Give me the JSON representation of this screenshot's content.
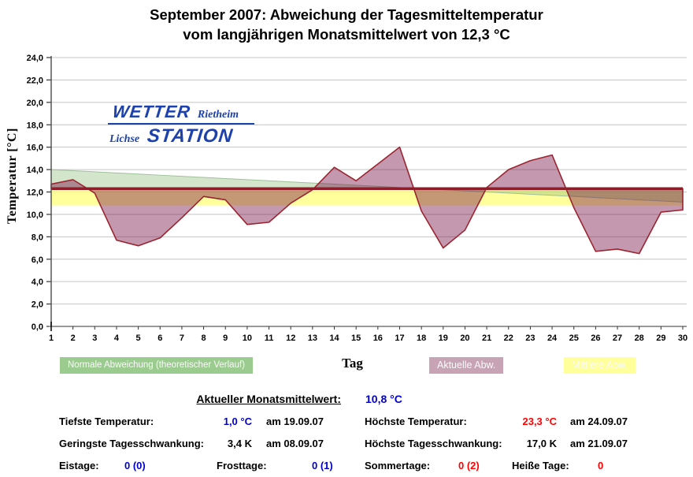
{
  "title": {
    "line1": "September 2007: Abweichung der Tagesmitteltemperatur",
    "line2": "vom langjährigen Monatsmittelwert von 12,3 °C"
  },
  "logo": {
    "top_main": "WETTER",
    "top_sub": "Rietheim",
    "bottom_sub": "Lichse",
    "bottom_main": "STATION"
  },
  "colors": {
    "blue": "#0000d0",
    "red": "#ff0000",
    "black": "#000000",
    "logo_blue": "#1d41ad",
    "reference_red": "#8e1f28"
  },
  "legend": {
    "items": [
      {
        "label": "Normale Abweichung (theoretischer Verlauf)",
        "color": "#9ccb90"
      },
      {
        "label": "Aktuelle Abw.",
        "color": "#c8a2b5"
      },
      {
        "label": "Mittlere Abw.",
        "color": "#ffff9c"
      }
    ]
  },
  "chart_data": {
    "type": "area",
    "title": "September 2007: Abweichung der Tagesmitteltemperatur vom langjährigen Monatsmittelwert von 12,3 °C",
    "xlabel": "Tag",
    "ylabel": "Temperatur [°C]",
    "ylim": [
      0,
      24
    ],
    "ytick_step": 2,
    "y_tick_labels": [
      "0,0",
      "2,0",
      "4,0",
      "6,0",
      "8,0",
      "10,0",
      "12,0",
      "14,0",
      "16,0",
      "18,0",
      "20,0",
      "22,0",
      "24,0"
    ],
    "x": [
      1,
      2,
      3,
      4,
      5,
      6,
      7,
      8,
      9,
      10,
      11,
      12,
      13,
      14,
      15,
      16,
      17,
      18,
      19,
      20,
      21,
      22,
      23,
      24,
      25,
      26,
      27,
      28,
      29,
      30
    ],
    "grid": true,
    "legend_position": "bottom",
    "reference_line": {
      "value": 12.3,
      "color": "#8e1f28"
    },
    "monthly_mean_longterm": 12.3,
    "monthly_mean_actual": 10.8,
    "series": [
      {
        "name": "Aktuelle Abw.",
        "type": "area_vs_reference",
        "line_color": "#9b2430",
        "fill_color": "rgba(114,10,62,0.42)",
        "values": [
          12.7,
          13.1,
          11.9,
          7.7,
          7.2,
          7.9,
          9.7,
          11.6,
          11.3,
          9.1,
          9.3,
          11.0,
          12.2,
          14.2,
          13.0,
          14.5,
          16.0,
          10.3,
          7.0,
          8.6,
          12.4,
          14.0,
          14.8,
          15.3,
          10.6,
          6.7,
          6.9,
          6.5,
          10.2,
          10.4
        ]
      },
      {
        "name": "Normale Abweichung (theoretischer Verlauf)",
        "type": "area_vs_reference",
        "line_color": "#9fbf9a",
        "fill_color": "rgba(140,190,120,0.38)",
        "values": [
          14.0,
          13.9,
          13.8,
          13.7,
          13.6,
          13.5,
          13.4,
          13.3,
          13.2,
          13.1,
          13.0,
          12.9,
          12.8,
          12.7,
          12.6,
          12.5,
          12.4,
          12.3,
          12.2,
          12.1,
          12.0,
          11.9,
          11.8,
          11.7,
          11.6,
          11.5,
          11.4,
          11.3,
          11.2,
          11.1
        ]
      },
      {
        "name": "Mittlere Abw.",
        "type": "band",
        "range": [
          10.8,
          12.3
        ],
        "fill_color": "rgba(255,255,130,0.8)"
      }
    ]
  },
  "stats": {
    "header": {
      "label": "Aktueller Monatsmittelwert:",
      "value": "10,8 °C",
      "value_color": "blue"
    },
    "rows": [
      {
        "label": "Tiefste Temperatur:",
        "value": "1,0 °C",
        "value_color": "blue",
        "date": "am 19.09.07"
      },
      {
        "label": "Höchste Temperatur:",
        "value": "23,3 °C",
        "value_color": "red",
        "date": "am 24.09.07"
      },
      {
        "label": "Geringste Tagesschwankung:",
        "value": "3,4 K",
        "value_color": "black",
        "date": "am 08.09.07"
      },
      {
        "label": "Höchste Tagesschwankung:",
        "value": "17,0 K",
        "value_color": "black",
        "date": "am 21.09.07"
      }
    ],
    "day_counts": [
      {
        "label": "Eistage:",
        "value": "0 (0)",
        "value_color": "blue"
      },
      {
        "label": "Frosttage:",
        "value": "0 (1)",
        "value_color": "blue"
      },
      {
        "label": "Sommertage:",
        "value": "0 (2)",
        "value_color": "red"
      },
      {
        "label": "Heiße Tage:",
        "value": "0",
        "value_color": "red"
      }
    ]
  }
}
